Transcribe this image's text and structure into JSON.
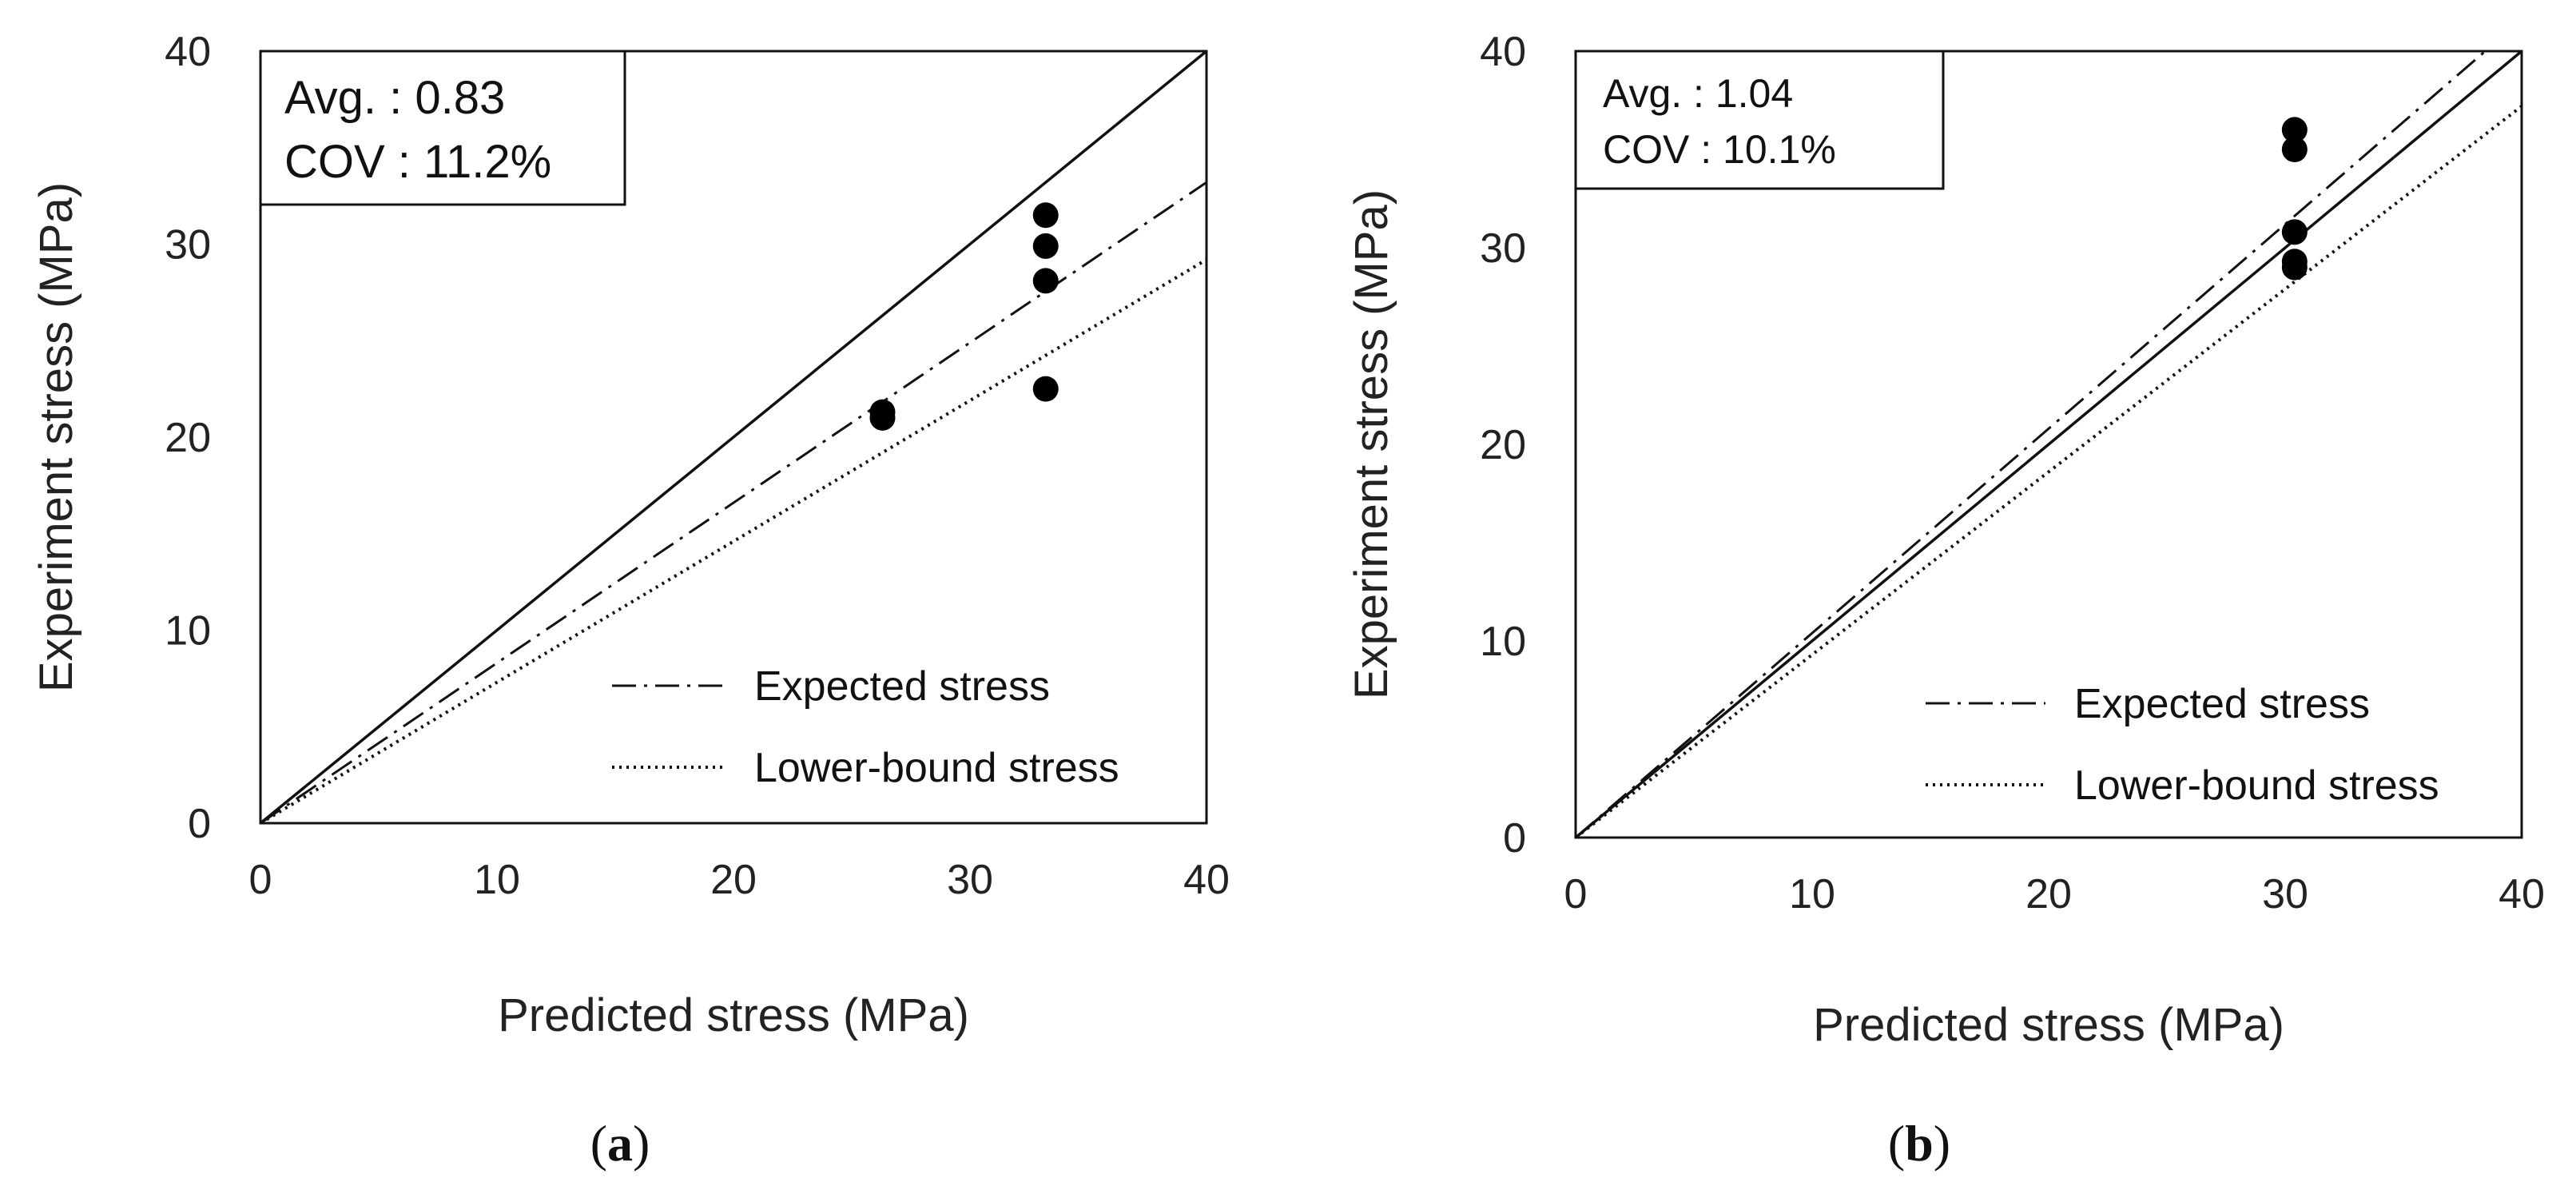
{
  "chart_data": [
    {
      "type": "scatter",
      "panel_label": "(a)",
      "panel_open": "(",
      "panel_letter": "a",
      "panel_close": ")",
      "xlabel": "Predicted stress (MPa)",
      "ylabel": "Experiment stress (MPa)",
      "xlim": [
        0,
        40
      ],
      "ylim": [
        0,
        40
      ],
      "xticks": [
        "0",
        "10",
        "20",
        "30",
        "40"
      ],
      "yticks": [
        "0",
        "10",
        "20",
        "30",
        "40"
      ],
      "stats": {
        "avg": "Avg. : 0.83",
        "cov": "COV : 11.2%"
      },
      "points": [
        {
          "x": 26.3,
          "y": 21.3
        },
        {
          "x": 26.3,
          "y": 21.0
        },
        {
          "x": 33.2,
          "y": 31.5
        },
        {
          "x": 33.2,
          "y": 29.9
        },
        {
          "x": 33.2,
          "y": 28.1
        },
        {
          "x": 33.2,
          "y": 22.5
        }
      ],
      "lines": [
        {
          "name": "Equality",
          "slope": 1.0,
          "style": "solid"
        },
        {
          "name": "Expected stress",
          "slope": 0.83,
          "style": "dashdot"
        },
        {
          "name": "Lower-bound stress",
          "slope": 0.73,
          "style": "dotted"
        }
      ],
      "legend": [
        "Expected stress",
        "Lower-bound stress"
      ],
      "legend_position": "bottom-right",
      "stats_position": "top-left",
      "grid": false
    },
    {
      "type": "scatter",
      "panel_label": "(b)",
      "panel_open": "(",
      "panel_letter": "b",
      "panel_close": ")",
      "xlabel": "Predicted stress (MPa)",
      "ylabel": "Experiment stress (MPa)",
      "xlim": [
        0,
        40
      ],
      "ylim": [
        0,
        40
      ],
      "xticks": [
        "0",
        "10",
        "20",
        "30",
        "40"
      ],
      "yticks": [
        "0",
        "10",
        "20",
        "30",
        "40"
      ],
      "stats": {
        "avg": "Avg. : 1.04",
        "cov": "COV : 10.1%"
      },
      "points": [
        {
          "x": 30.4,
          "y": 36.0
        },
        {
          "x": 30.4,
          "y": 35.0
        },
        {
          "x": 30.4,
          "y": 30.8
        },
        {
          "x": 30.4,
          "y": 29.3
        },
        {
          "x": 30.4,
          "y": 29.0
        }
      ],
      "lines": [
        {
          "name": "Equality",
          "slope": 1.0,
          "style": "solid"
        },
        {
          "name": "Expected stress",
          "slope": 1.04,
          "style": "dashdot"
        },
        {
          "name": "Lower-bound stress",
          "slope": 0.93,
          "style": "dotted"
        }
      ],
      "legend": [
        "Expected stress",
        "Lower-bound stress"
      ],
      "legend_position": "bottom-right",
      "stats_position": "top-left",
      "grid": false
    }
  ]
}
